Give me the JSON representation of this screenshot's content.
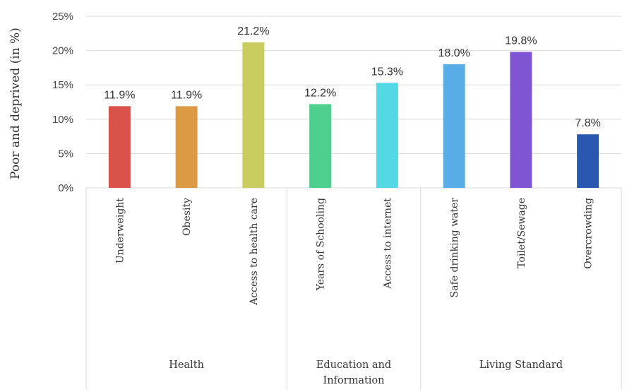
{
  "chart_data": {
    "type": "bar",
    "title": "",
    "ylabel": "Poor and deprived (in %)",
    "xlabel": "",
    "ylim": [
      0,
      25
    ],
    "yticks": [
      0,
      5,
      10,
      15,
      20,
      25
    ],
    "ytick_labels": [
      "0%",
      "5%",
      "10%",
      "15%",
      "20%",
      "25%"
    ],
    "grid": "horizontal",
    "legend": "none",
    "categories": [
      "Underweight",
      "Obesity",
      "Access to health care",
      "Years of Schooling",
      "Access to internet",
      "Safe drinking water",
      "Toilet/Sewage",
      "Overcrowding"
    ],
    "values": [
      11.9,
      11.9,
      21.2,
      12.2,
      15.3,
      18.0,
      19.8,
      7.8
    ],
    "data_labels": [
      "11.9%",
      "11.9%",
      "21.2%",
      "12.2%",
      "15.3%",
      "18.0%",
      "19.8%",
      "7.8%"
    ],
    "colors": [
      "#d9534a",
      "#dd9a45",
      "#c9cc5e",
      "#4fcf8e",
      "#55d8e6",
      "#58ade6",
      "#8055d4",
      "#2a58b0"
    ],
    "groups": [
      {
        "lines": [
          "Health"
        ],
        "start": 0,
        "count": 3
      },
      {
        "lines": [
          "Education and",
          "Information"
        ],
        "start": 3,
        "count": 2
      },
      {
        "lines": [
          "Living Standard"
        ],
        "start": 5,
        "count": 3
      }
    ]
  }
}
